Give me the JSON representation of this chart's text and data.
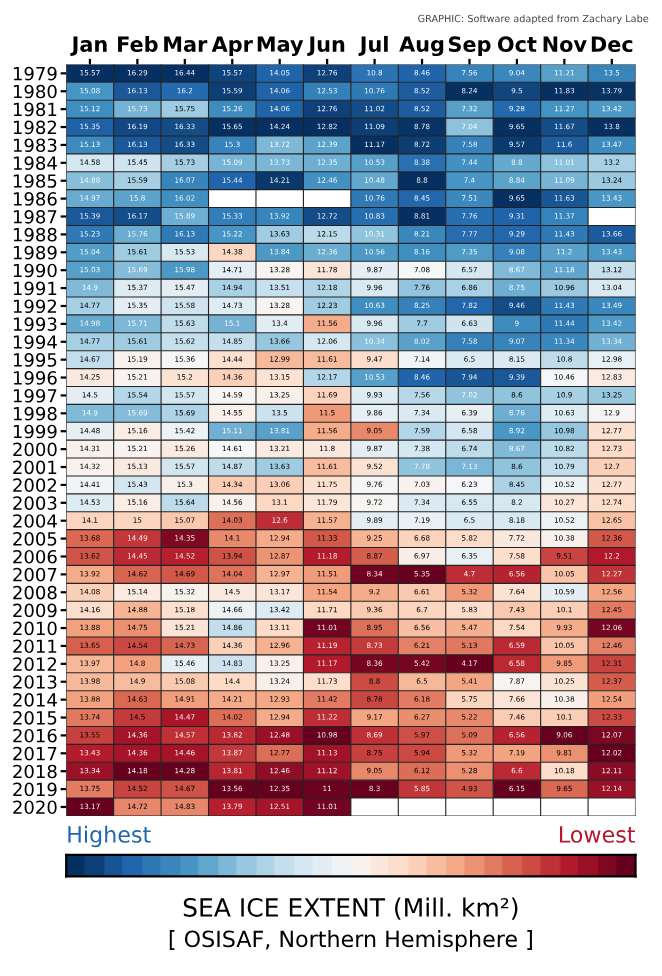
{
  "chart_data": {
    "type": "heatmap",
    "title": "SEA ICE EXTENT (Mill. km²)",
    "subtitle": "[ OSISAF, Northern Hemisphere ]",
    "annotations": [
      "GRAPHIC: Software adapted from Zachary Labe",
      "Highest",
      "Lowest"
    ],
    "categories": [
      "Jan",
      "Feb",
      "Mar",
      "Apr",
      "May",
      "Jun",
      "Jul",
      "Aug",
      "Sep",
      "Oct",
      "Nov",
      "Dec"
    ],
    "y_categories": [
      "1979",
      "1980",
      "1981",
      "1982",
      "1983",
      "1984",
      "1985",
      "1986",
      "1987",
      "1988",
      "1989",
      "1990",
      "1991",
      "1992",
      "1993",
      "1994",
      "1995",
      "1996",
      "1997",
      "1998",
      "1999",
      "2000",
      "2001",
      "2002",
      "2003",
      "2004",
      "2005",
      "2006",
      "2007",
      "2008",
      "2009",
      "2010",
      "2011",
      "2012",
      "2013",
      "2014",
      "2015",
      "2016",
      "2017",
      "2018",
      "2019",
      "2020"
    ],
    "cells": [
      [
        15.57,
        16.29,
        16.44,
        15.57,
        14.05,
        12.76,
        10.8,
        8.46,
        7.56,
        9.04,
        11.21,
        13.5
      ],
      [
        15.08,
        16.13,
        16.2,
        15.59,
        14.06,
        12.53,
        10.76,
        8.52,
        8.24,
        9.5,
        11.83,
        13.79
      ],
      [
        15.12,
        15.73,
        15.75,
        15.26,
        14.06,
        12.76,
        11.02,
        8.52,
        7.32,
        9.28,
        11.27,
        13.42
      ],
      [
        15.35,
        16.19,
        16.33,
        15.65,
        14.24,
        12.82,
        11.09,
        8.78,
        7.04,
        9.65,
        11.67,
        13.8
      ],
      [
        15.13,
        16.13,
        16.33,
        15.3,
        13.72,
        12.39,
        11.17,
        8.72,
        7.58,
        9.57,
        11.6,
        13.47
      ],
      [
        14.58,
        15.45,
        15.73,
        15.09,
        13.73,
        12.35,
        10.53,
        8.38,
        7.44,
        8.8,
        11.01,
        13.2
      ],
      [
        14.88,
        15.59,
        16.07,
        15.44,
        14.21,
        12.46,
        10.48,
        8.8,
        7.4,
        8.84,
        11.09,
        13.24
      ],
      [
        14.97,
        15.8,
        16.02,
        null,
        null,
        null,
        10.76,
        8.45,
        7.51,
        9.65,
        11.63,
        13.43
      ],
      [
        15.39,
        16.17,
        15.89,
        15.33,
        13.92,
        12.72,
        10.83,
        8.81,
        7.76,
        9.31,
        11.37,
        null
      ],
      [
        15.23,
        15.76,
        16.13,
        15.22,
        13.63,
        12.15,
        10.31,
        8.21,
        7.77,
        9.29,
        11.43,
        13.66
      ],
      [
        15.04,
        15.61,
        15.53,
        14.38,
        13.84,
        12.36,
        10.56,
        8.16,
        7.35,
        9.08,
        11.2,
        13.43
      ],
      [
        15.03,
        15.69,
        15.98,
        14.71,
        13.28,
        11.78,
        9.87,
        7.08,
        6.57,
        8.67,
        11.18,
        13.12
      ],
      [
        14.9,
        15.37,
        15.47,
        14.94,
        13.51,
        12.18,
        9.96,
        7.76,
        6.86,
        8.75,
        10.96,
        13.04
      ],
      [
        14.77,
        15.35,
        15.58,
        14.73,
        13.28,
        12.23,
        10.63,
        8.25,
        7.82,
        9.46,
        11.43,
        13.49
      ],
      [
        14.98,
        15.71,
        15.63,
        15.1,
        13.4,
        11.56,
        9.96,
        7.7,
        6.63,
        9,
        11.44,
        13.42
      ],
      [
        14.77,
        15.61,
        15.62,
        14.85,
        13.66,
        12.06,
        10.34,
        8.02,
        7.58,
        9.07,
        11.34,
        13.34
      ],
      [
        14.67,
        15.19,
        15.36,
        14.44,
        12.99,
        11.61,
        9.47,
        7.14,
        6.5,
        8.15,
        10.8,
        12.98
      ],
      [
        14.25,
        15.21,
        15.2,
        14.36,
        13.15,
        12.17,
        10.53,
        8.46,
        7.94,
        9.39,
        10.46,
        12.83
      ],
      [
        14.5,
        15.54,
        15.57,
        14.59,
        13.25,
        11.69,
        9.93,
        7.56,
        7.02,
        8.6,
        10.9,
        13.25
      ],
      [
        14.9,
        15.69,
        15.69,
        14.55,
        13.5,
        11.5,
        9.86,
        7.34,
        6.39,
        8.76,
        10.63,
        12.9
      ],
      [
        14.48,
        15.16,
        15.42,
        15.11,
        13.81,
        11.56,
        9.05,
        7.59,
        6.58,
        8.92,
        10.98,
        12.77
      ],
      [
        14.31,
        15.21,
        15.26,
        14.61,
        13.21,
        11.8,
        9.87,
        7.38,
        6.74,
        8.67,
        10.82,
        12.73
      ],
      [
        14.32,
        15.13,
        15.57,
        14.87,
        13.63,
        11.61,
        9.52,
        7.78,
        7.13,
        8.6,
        10.79,
        12.7
      ],
      [
        14.41,
        15.43,
        15.3,
        14.34,
        13.06,
        11.75,
        9.76,
        7.03,
        6.23,
        8.45,
        10.52,
        12.77
      ],
      [
        14.53,
        15.16,
        15.64,
        14.56,
        13.1,
        11.79,
        9.72,
        7.34,
        6.55,
        8.2,
        10.27,
        12.74
      ],
      [
        14.1,
        15,
        15.07,
        14.03,
        12.6,
        11.57,
        9.89,
        7.19,
        6.5,
        8.18,
        10.52,
        12.65
      ],
      [
        13.68,
        14.49,
        14.35,
        14.1,
        12.94,
        11.33,
        9.25,
        6.68,
        5.82,
        7.72,
        10.38,
        12.36
      ],
      [
        13.62,
        14.45,
        14.52,
        13.94,
        12.87,
        11.18,
        8.87,
        6.97,
        6.35,
        7.58,
        9.51,
        12.2
      ],
      [
        13.92,
        14.62,
        14.69,
        14.04,
        12.97,
        11.51,
        8.34,
        5.35,
        4.7,
        6.56,
        10.05,
        12.27
      ],
      [
        14.08,
        15.14,
        15.32,
        14.5,
        13.17,
        11.54,
        9.2,
        6.61,
        5.32,
        7.64,
        10.59,
        12.56
      ],
      [
        14.16,
        14.88,
        15.18,
        14.66,
        13.42,
        11.71,
        9.36,
        6.7,
        5.83,
        7.43,
        10.1,
        12.45
      ],
      [
        13.88,
        14.75,
        15.21,
        14.86,
        13.11,
        11.01,
        8.95,
        6.56,
        5.47,
        7.54,
        9.93,
        12.06
      ],
      [
        13.65,
        14.54,
        14.73,
        14.36,
        12.96,
        11.19,
        8.73,
        6.21,
        5.13,
        6.59,
        10.05,
        12.46
      ],
      [
        13.97,
        14.8,
        15.46,
        14.83,
        13.25,
        11.17,
        8.36,
        5.42,
        4.17,
        6.58,
        9.85,
        12.31
      ],
      [
        13.98,
        14.9,
        15.08,
        14.4,
        13.24,
        11.73,
        8.8,
        6.5,
        5.41,
        7.87,
        10.25,
        12.37
      ],
      [
        13.88,
        14.63,
        14.91,
        14.21,
        12.93,
        11.42,
        8.78,
        6.18,
        5.75,
        7.66,
        10.38,
        12.54
      ],
      [
        13.74,
        14.5,
        14.47,
        14.02,
        12.94,
        11.22,
        9.17,
        6.27,
        5.22,
        7.46,
        10.1,
        12.33
      ],
      [
        13.55,
        14.36,
        14.57,
        13.82,
        12.48,
        10.98,
        8.69,
        5.97,
        5.09,
        6.56,
        9.06,
        12.07
      ],
      [
        13.43,
        14.36,
        14.46,
        13.87,
        12.77,
        11.13,
        8.75,
        5.94,
        5.32,
        7.19,
        9.81,
        12.02
      ],
      [
        13.34,
        14.18,
        14.28,
        13.81,
        12.46,
        11.12,
        9.05,
        6.12,
        5.28,
        6.6,
        10.18,
        12.11
      ],
      [
        13.75,
        14.52,
        14.67,
        13.56,
        12.35,
        11,
        8.3,
        5.85,
        4.93,
        6.15,
        9.65,
        12.14
      ],
      [
        13.17,
        14.72,
        14.83,
        13.79,
        12.51,
        11.01,
        null,
        null,
        null,
        null,
        null,
        null
      ]
    ],
    "data_labels": true,
    "grid": true
  }
}
